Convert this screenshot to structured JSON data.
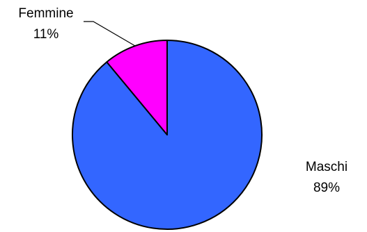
{
  "chart_data": {
    "type": "pie",
    "title": "",
    "slices": [
      {
        "label": "Maschi",
        "value": 89,
        "display": "89%",
        "color": "#3366FF"
      },
      {
        "label": "Femmine",
        "value": 11,
        "display": "11%",
        "color": "#FF00FF"
      }
    ],
    "start_angle": "12 o'clock",
    "direction": "clockwise",
    "outline_color": "#000000",
    "legend": "none"
  }
}
